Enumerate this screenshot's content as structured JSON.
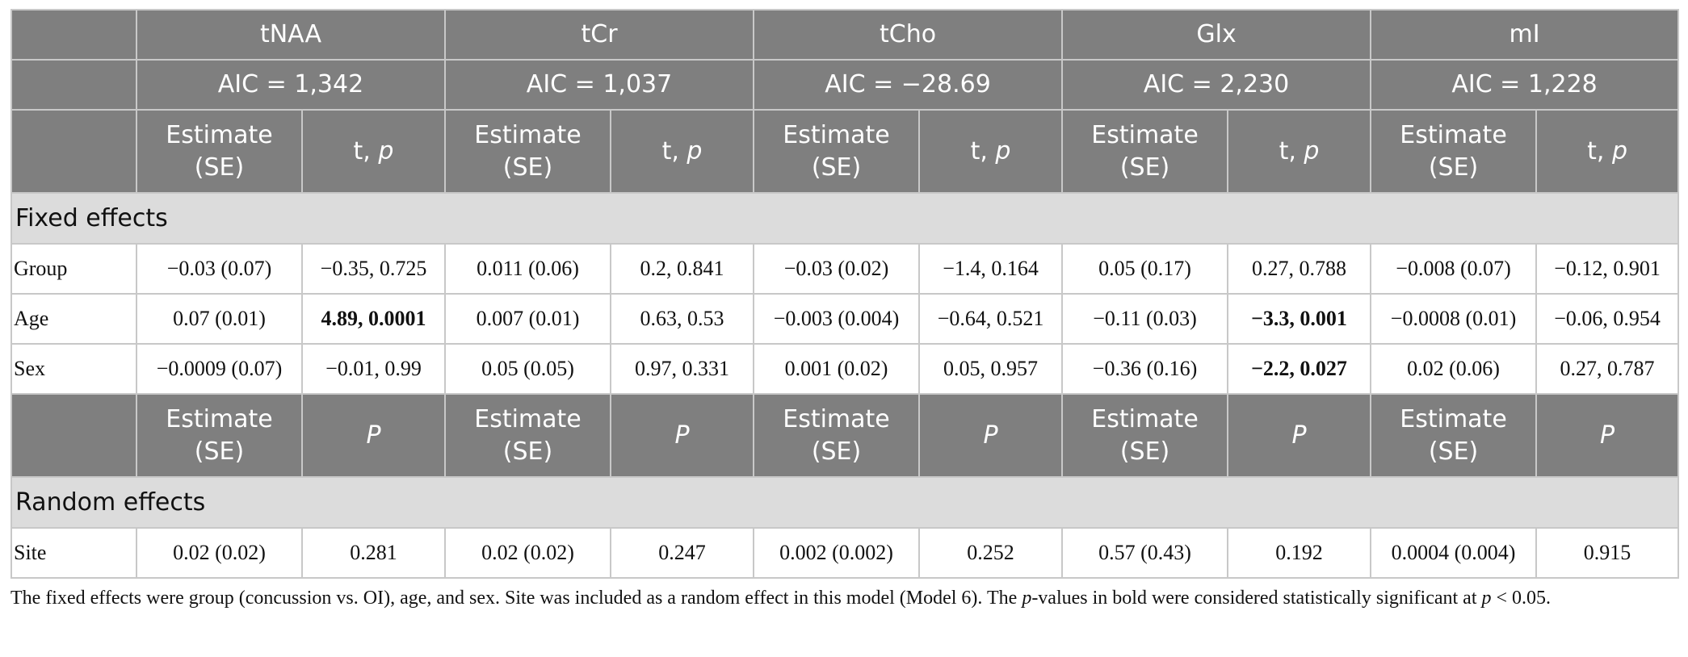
{
  "columns": {
    "metabolites": [
      {
        "name": "tNAA",
        "aic": "AIC = 1,342"
      },
      {
        "name": "tCr",
        "aic": "AIC = 1,037"
      },
      {
        "name": "tCho",
        "aic": "AIC = −28.69"
      },
      {
        "name": "Glx",
        "aic": "AIC = 2,230"
      },
      {
        "name": "mI",
        "aic": "AIC = 1,228"
      }
    ],
    "sub_fixed": {
      "estimate_line1": "Estimate",
      "estimate_line2": "(SE)",
      "tp_t": "t, ",
      "tp_p": "p"
    },
    "sub_random": {
      "estimate_line1": "Estimate",
      "estimate_line2": "(SE)",
      "p": "P"
    }
  },
  "fixed": {
    "title": "Fixed effects",
    "rows": [
      {
        "label": "Group",
        "cells": [
          {
            "v": "−0.03 (0.07)",
            "bold": false
          },
          {
            "v": "−0.35, 0.725",
            "bold": false
          },
          {
            "v": "0.011 (0.06)",
            "bold": false
          },
          {
            "v": "0.2, 0.841",
            "bold": false
          },
          {
            "v": "−0.03 (0.02)",
            "bold": false
          },
          {
            "v": "−1.4, 0.164",
            "bold": false
          },
          {
            "v": "0.05 (0.17)",
            "bold": false
          },
          {
            "v": "0.27, 0.788",
            "bold": false
          },
          {
            "v": "−0.008 (0.07)",
            "bold": false
          },
          {
            "v": "−0.12, 0.901",
            "bold": false
          }
        ]
      },
      {
        "label": "Age",
        "cells": [
          {
            "v": "0.07 (0.01)",
            "bold": false
          },
          {
            "v": "4.89, 0.0001",
            "bold": true
          },
          {
            "v": "0.007 (0.01)",
            "bold": false
          },
          {
            "v": "0.63, 0.53",
            "bold": false
          },
          {
            "v": "−0.003 (0.004)",
            "bold": false
          },
          {
            "v": "−0.64, 0.521",
            "bold": false
          },
          {
            "v": "−0.11 (0.03)",
            "bold": false
          },
          {
            "v": "−3.3, 0.001",
            "bold": true
          },
          {
            "v": "−0.0008 (0.01)",
            "bold": false
          },
          {
            "v": "−0.06, 0.954",
            "bold": false
          }
        ]
      },
      {
        "label": "Sex",
        "cells": [
          {
            "v": "−0.0009 (0.07)",
            "bold": false
          },
          {
            "v": "−0.01, 0.99",
            "bold": false
          },
          {
            "v": "0.05 (0.05)",
            "bold": false
          },
          {
            "v": "0.97, 0.331",
            "bold": false
          },
          {
            "v": "0.001 (0.02)",
            "bold": false
          },
          {
            "v": "0.05, 0.957",
            "bold": false
          },
          {
            "v": "−0.36 (0.16)",
            "bold": false
          },
          {
            "v": "−2.2, 0.027",
            "bold": true
          },
          {
            "v": "0.02 (0.06)",
            "bold": false
          },
          {
            "v": "0.27, 0.787",
            "bold": false
          }
        ]
      }
    ]
  },
  "random": {
    "title": "Random effects",
    "rows": [
      {
        "label": "Site",
        "cells": [
          {
            "v": "0.02 (0.02)",
            "bold": false
          },
          {
            "v": "0.281",
            "bold": false
          },
          {
            "v": "0.02 (0.02)",
            "bold": false
          },
          {
            "v": "0.247",
            "bold": false
          },
          {
            "v": "0.002 (0.002)",
            "bold": false
          },
          {
            "v": "0.252",
            "bold": false
          },
          {
            "v": "0.57 (0.43)",
            "bold": false
          },
          {
            "v": "0.192",
            "bold": false
          },
          {
            "v": "0.0004 (0.004)",
            "bold": false
          },
          {
            "v": "0.915",
            "bold": false
          }
        ]
      }
    ]
  },
  "footnote": {
    "part1": "The fixed effects were group (concussion vs. OI), age, and sex. Site was included as a random effect in this model (Model 6). The ",
    "p_italic": "p",
    "part2": "-values in bold were considered statistically significant at ",
    "p_italic2": "p",
    "part3": " < 0.05."
  }
}
